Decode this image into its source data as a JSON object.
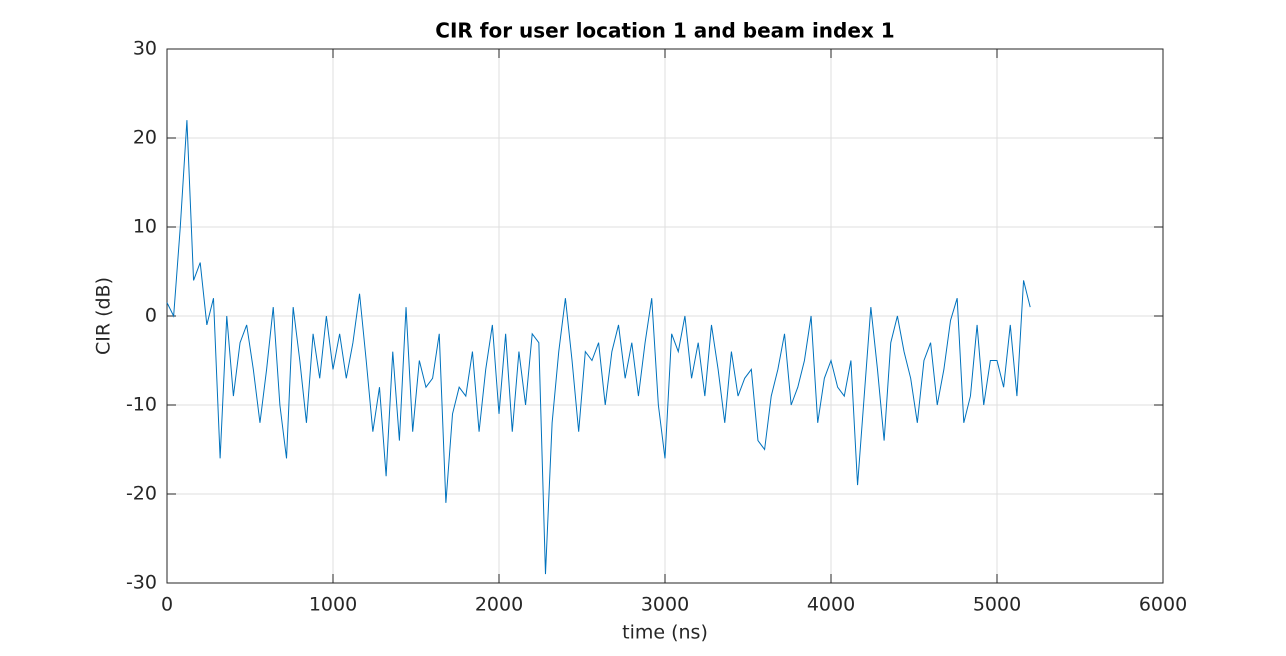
{
  "chart_data": {
    "type": "line",
    "title": "CIR for user location 1 and beam index 1",
    "x_label": "time (ns)",
    "y_label": "CIR (dB)",
    "x": [
      0,
      40,
      80,
      120,
      160,
      200,
      240,
      280,
      320,
      360,
      400,
      440,
      480,
      520,
      560,
      600,
      640,
      680,
      720,
      760,
      800,
      840,
      880,
      920,
      960,
      1000,
      1040,
      1080,
      1120,
      1160,
      1200,
      1240,
      1280,
      1320,
      1360,
      1400,
      1440,
      1480,
      1520,
      1560,
      1600,
      1640,
      1680,
      1720,
      1760,
      1800,
      1840,
      1880,
      1920,
      1960,
      2000,
      2040,
      2080,
      2120,
      2160,
      2200,
      2240,
      2280,
      2320,
      2360,
      2400,
      2440,
      2480,
      2520,
      2560,
      2600,
      2640,
      2680,
      2720,
      2760,
      2800,
      2840,
      2880,
      2920,
      2960,
      3000,
      3040,
      3080,
      3120,
      3160,
      3200,
      3240,
      3280,
      3320,
      3360,
      3400,
      3440,
      3480,
      3520,
      3560,
      3600,
      3640,
      3680,
      3720,
      3760,
      3800,
      3840,
      3880,
      3920,
      3960,
      4000,
      4040,
      4080,
      4120,
      4160,
      4200,
      4240,
      4280,
      4320,
      4360,
      4400,
      4440,
      4480,
      4520,
      4560,
      4600,
      4640,
      4680,
      4720,
      4760,
      4800,
      4840,
      4880,
      4920,
      4960,
      5000,
      5040,
      5080,
      5120,
      5160,
      5200
    ],
    "values": [
      1.5,
      0,
      10,
      22,
      4,
      6,
      -1,
      2,
      -16,
      0,
      -9,
      -3,
      -1,
      -6,
      -12,
      -6,
      1,
      -10,
      -16,
      1,
      -5,
      -12,
      -2,
      -7,
      0,
      -6,
      -2,
      -7,
      -3,
      2.5,
      -5,
      -13,
      -8,
      -18,
      -4,
      -14,
      1,
      -13,
      -5,
      -8,
      -7,
      -2,
      -21,
      -11,
      -8,
      -9,
      -4,
      -13,
      -6,
      -1,
      -11,
      -2,
      -13,
      -4,
      -10,
      -2,
      -3,
      -29,
      -12,
      -4,
      2,
      -5,
      -13,
      -4,
      -5,
      -3,
      -10,
      -4,
      -1,
      -7,
      -3,
      -9,
      -3,
      2,
      -10,
      -16,
      -2,
      -4,
      0,
      -7,
      -3,
      -9,
      -1,
      -6,
      -12,
      -4,
      -9,
      -7,
      -6,
      -14,
      -15,
      -9,
      -6,
      -2,
      -10,
      -8,
      -5,
      0,
      -12,
      -7,
      -5,
      -8,
      -9,
      -5,
      -19,
      -9,
      1,
      -6,
      -14,
      -3,
      0,
      -4,
      -7,
      -12,
      -5,
      -3,
      -10,
      -6,
      -0.5,
      2,
      -12,
      -9,
      -1,
      -10,
      -5,
      -5,
      -8,
      -1,
      -9,
      4,
      1
    ],
    "color": "#0072bd",
    "xlim": [
      0,
      6000
    ],
    "xticks": [
      0,
      1000,
      2000,
      3000,
      4000,
      5000,
      6000
    ],
    "ylim": [
      -30,
      30
    ],
    "yticks": [
      -30,
      -20,
      -10,
      0,
      10,
      20,
      30
    ],
    "grid": true
  }
}
